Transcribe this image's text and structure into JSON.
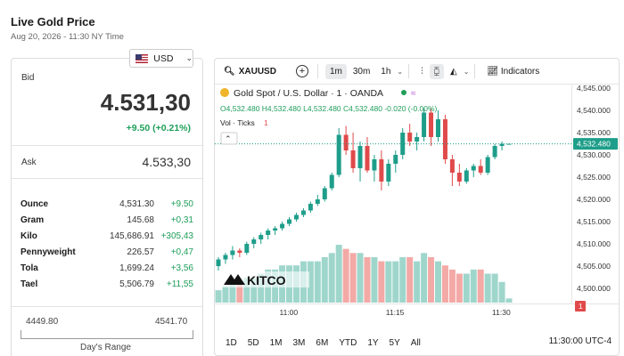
{
  "page": {
    "title": "Live Gold Price",
    "subtitle": "Aug 20, 2026 - 11:30 NY Time"
  },
  "currency": {
    "value": "USD"
  },
  "bid": {
    "label": "Bid",
    "value": "4.531,30",
    "change": "+9.50 (+0.21%)"
  },
  "ask": {
    "label": "Ask",
    "value": "4.533,30"
  },
  "units": [
    {
      "name": "Ounce",
      "value": "4,531.30",
      "change": "+9.50"
    },
    {
      "name": "Gram",
      "value": "145.68",
      "change": "+0,31"
    },
    {
      "name": "Kilo",
      "value": "145,686.91",
      "change": "+305,43"
    },
    {
      "name": "Pennyweight",
      "value": "226.57",
      "change": "+0,47"
    },
    {
      "name": "Tola",
      "value": "1,699.24",
      "change": "+3,56"
    },
    {
      "name": "Tael",
      "value": "5,506.79",
      "change": "+11,55"
    }
  ],
  "range": {
    "low": "4449.80",
    "high": "4541.70",
    "label": "Day's Range"
  },
  "toolbar": {
    "symbol": "XAUUSD",
    "intervals": [
      "1m",
      "30m",
      "1h"
    ],
    "indicators_label": "Indicators"
  },
  "legend": {
    "name": "Gold Spot / U.S. Dollar · 1 · OANDA",
    "ohlc": "O4,532.480 H4,532.480 L4,532.480 C4,532.480 -0.020 (-0.00%)",
    "vol": "Vol · Ticks",
    "vol_value": "1"
  },
  "logo": {
    "text": "KITCO"
  },
  "price_tag": "4,532.480",
  "vol_tag": "1",
  "bottom": {
    "ranges": [
      "1D",
      "5D",
      "1M",
      "3M",
      "6M",
      "YTD",
      "1Y",
      "5Y",
      "All"
    ],
    "time": "11:30:00 UTC-4"
  },
  "colors": {
    "up": "#1e9e8a",
    "down": "#e04a4a",
    "up_vol": "#9fd6cc",
    "down_vol": "#f3a9a6",
    "accent": "#1e9e5a"
  },
  "chart_data": {
    "type": "candlestick",
    "y_ticks": [
      "4,545.000",
      "4,540.000",
      "4,535.000",
      "4,530.000",
      "4,525.000",
      "4,520.000",
      "4,515.000",
      "4,510.000",
      "4,505.000",
      "4,500.000"
    ],
    "x_ticks": [
      "11:00",
      "11:15",
      "11:30"
    ],
    "ylim": [
      4497,
      4545
    ],
    "candles": [
      [
        4505,
        4507,
        4504,
        4506.5
      ],
      [
        4506.5,
        4508,
        4505.5,
        4507.5
      ],
      [
        4507.5,
        4509.5,
        4506.5,
        4508.5
      ],
      [
        4508.5,
        4509,
        4507,
        4508
      ],
      [
        4508,
        4510.5,
        4507.5,
        4510
      ],
      [
        4510,
        4511.5,
        4509,
        4511
      ],
      [
        4511,
        4512.5,
        4510,
        4512
      ],
      [
        4512,
        4513.5,
        4511,
        4513
      ],
      [
        4513,
        4514,
        4512,
        4513.5
      ],
      [
        4513.5,
        4515,
        4513,
        4514.5
      ],
      [
        4514.5,
        4516,
        4514,
        4515.5
      ],
      [
        4515.5,
        4517,
        4515,
        4516.5
      ],
      [
        4516.5,
        4518,
        4516,
        4517.5
      ],
      [
        4517.5,
        4519.5,
        4517,
        4519
      ],
      [
        4519,
        4521,
        4518.5,
        4520
      ],
      [
        4520,
        4523,
        4519.5,
        4522.5
      ],
      [
        4522.5,
        4526,
        4522,
        4525.5
      ],
      [
        4525.5,
        4536,
        4525,
        4534.5
      ],
      [
        4534.5,
        4536.5,
        4530,
        4531
      ],
      [
        4531,
        4535,
        4526,
        4527
      ],
      [
        4527,
        4533,
        4524,
        4532
      ],
      [
        4532,
        4534,
        4526,
        4526.5
      ],
      [
        4526.5,
        4530,
        4524,
        4529
      ],
      [
        4529,
        4531,
        4522,
        4524
      ],
      [
        4524,
        4529,
        4523,
        4528
      ],
      [
        4528,
        4531,
        4526,
        4530
      ],
      [
        4530,
        4536,
        4529,
        4535
      ],
      [
        4535,
        4537,
        4532,
        4533
      ],
      [
        4533,
        4535,
        4531,
        4534
      ],
      [
        4534,
        4540.5,
        4533,
        4539.5
      ],
      [
        4539.5,
        4540.5,
        4532,
        4534
      ],
      [
        4534,
        4540,
        4533,
        4538
      ],
      [
        4538,
        4539,
        4528,
        4529
      ],
      [
        4529,
        4530,
        4523,
        4526
      ],
      [
        4526,
        4528,
        4523,
        4524
      ],
      [
        4524,
        4527,
        4523.5,
        4526.5
      ],
      [
        4526.5,
        4528,
        4525,
        4527.5
      ],
      [
        4527.5,
        4529,
        4525.5,
        4526
      ],
      [
        4526,
        4530,
        4525.5,
        4529.5
      ],
      [
        4529.5,
        4532.5,
        4529,
        4532
      ],
      [
        4532,
        4533,
        4531,
        4532.48
      ],
      [
        4532.48,
        4532.5,
        4532.4,
        4532.48
      ]
    ],
    "volume": [
      3,
      4,
      5,
      5,
      6,
      6,
      7,
      8,
      8,
      9,
      9,
      9,
      10,
      10,
      10,
      11,
      12,
      14,
      13,
      12,
      12,
      11,
      11,
      10,
      10,
      10,
      11,
      11,
      10,
      12,
      11,
      10,
      9,
      8,
      7,
      7,
      8,
      8,
      7,
      7,
      5,
      1
    ]
  }
}
